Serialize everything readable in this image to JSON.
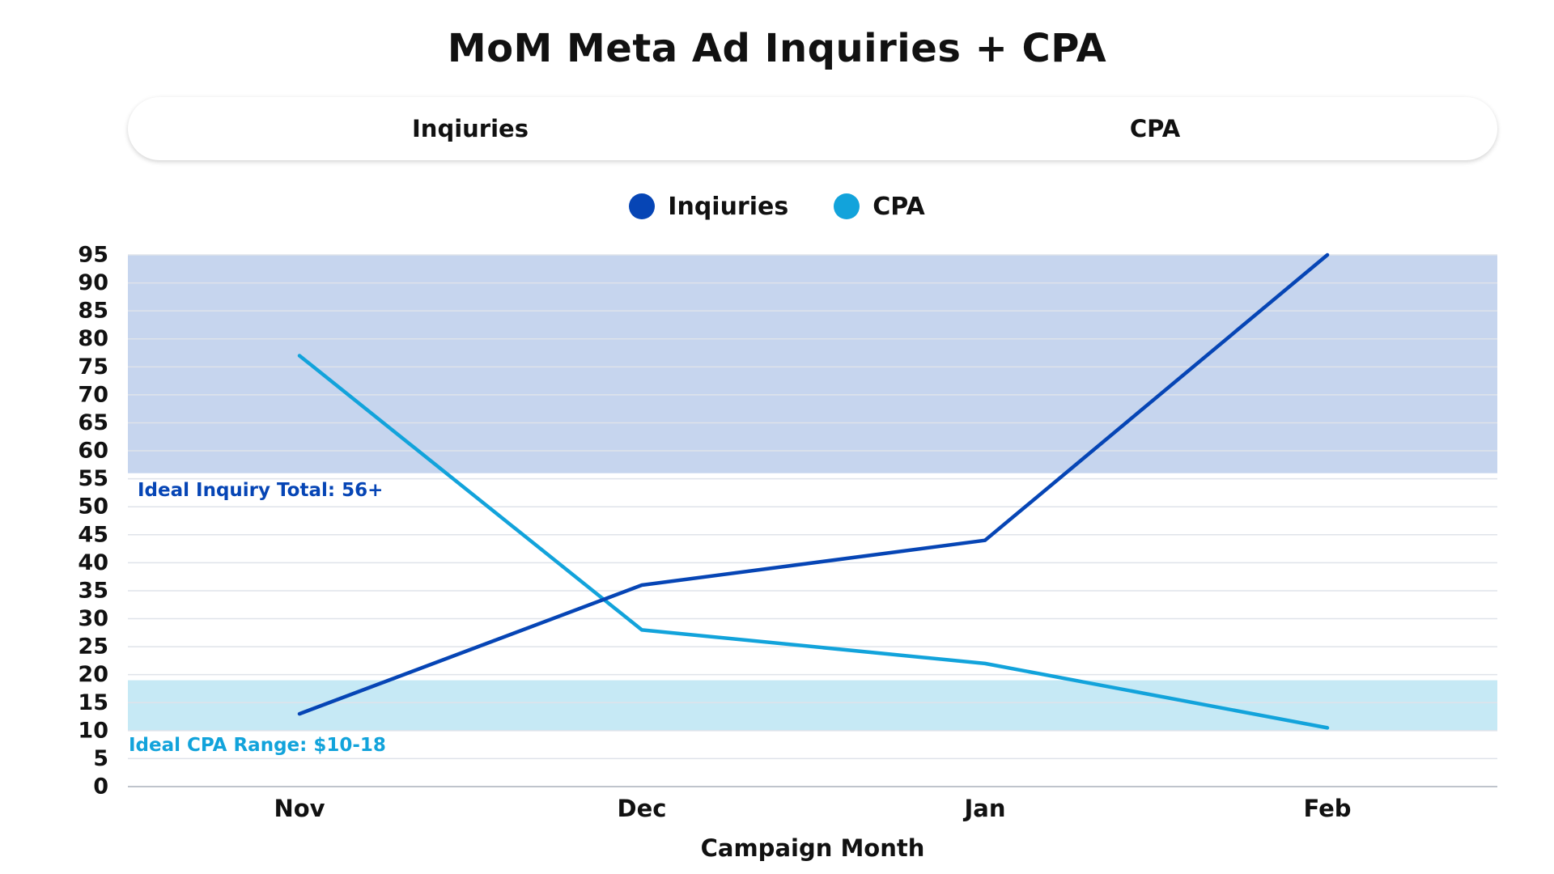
{
  "title": "MoM Meta Ad Inquiries + CPA",
  "toggle": {
    "inquiries_label": "Inqiuries",
    "cpa_label": "CPA"
  },
  "legend": [
    {
      "label": "Inqiuries",
      "color": "#0645b5"
    },
    {
      "label": "CPA",
      "color": "#12a3db"
    }
  ],
  "chart_data": {
    "type": "line",
    "title": "MoM Meta Ad Inquiries + CPA",
    "xlabel": "Campaign Month",
    "ylabel": "",
    "categories": [
      "Nov",
      "Dec",
      "Jan",
      "Feb"
    ],
    "ylim": [
      0,
      95
    ],
    "yticks": [
      0,
      5,
      10,
      15,
      20,
      25,
      30,
      35,
      40,
      45,
      50,
      55,
      60,
      65,
      70,
      75,
      80,
      85,
      90,
      95
    ],
    "grid": true,
    "legend_position": "top-center",
    "series": [
      {
        "name": "Inqiuries",
        "color": "#0645b5",
        "values": [
          13,
          36,
          44,
          95
        ]
      },
      {
        "name": "CPA",
        "color": "#12a3db",
        "values": [
          77,
          28,
          22,
          10.5
        ]
      }
    ],
    "bands": [
      {
        "name": "inquiry-band",
        "label": "Ideal Inquiry Total: 56+",
        "from": 56,
        "to": 95,
        "fill": "#c6d5ee",
        "label_color": "#0645b5"
      },
      {
        "name": "cpa-band",
        "label": "Ideal CPA Range: $10-18",
        "from": 10,
        "to": 19,
        "fill": "#c6e9f5",
        "label_color": "#12a3db"
      }
    ]
  }
}
